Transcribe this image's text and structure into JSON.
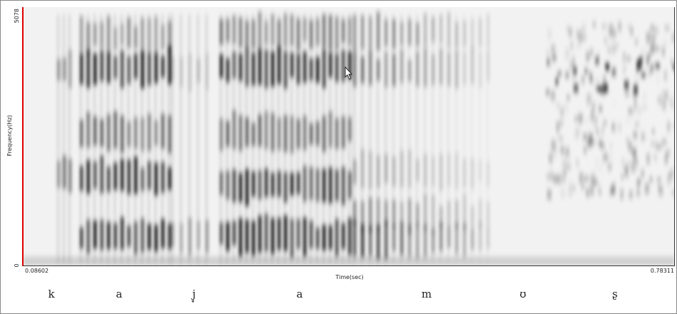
{
  "axis": {
    "y_max": "5078",
    "y_min": "0",
    "y_label": "Frequency(Hz)",
    "x_min": "0.08602",
    "x_max": "0.78311",
    "x_label": "Time(sec)"
  },
  "segments": [
    "k",
    "a",
    "j̥",
    "a",
    "m",
    "ʊ",
    "ʂ"
  ]
}
